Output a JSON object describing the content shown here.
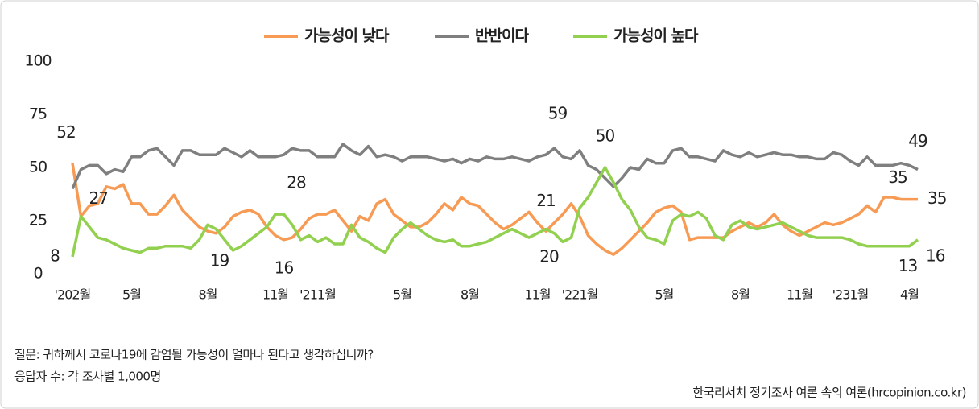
{
  "chart_data": {
    "type": "line",
    "categories": [
      "'202월",
      null,
      null,
      null,
      null,
      null,
      null,
      "5월",
      null,
      null,
      null,
      null,
      null,
      null,
      null,
      null,
      "8월",
      null,
      null,
      null,
      null,
      null,
      null,
      null,
      "11월",
      null,
      null,
      null,
      null,
      "'211월",
      null,
      null,
      null,
      null,
      null,
      null,
      null,
      null,
      null,
      "5월",
      null,
      null,
      null,
      null,
      null,
      null,
      null,
      "8월",
      null,
      null,
      null,
      null,
      null,
      null,
      null,
      "11월",
      null,
      null,
      null,
      null,
      "'221월",
      null,
      null,
      null,
      null,
      null,
      null,
      null,
      null,
      null,
      "5월",
      null,
      null,
      null,
      null,
      null,
      null,
      null,
      null,
      "8월",
      null,
      null,
      null,
      null,
      null,
      null,
      "11월",
      null,
      null,
      null,
      null,
      null,
      "'231월",
      null,
      null,
      null,
      null,
      null,
      null,
      "4월",
      null
    ],
    "series": [
      {
        "name": "가능성이 낮다",
        "color": "#f79b54",
        "label_color": "#e36c0a",
        "values": [
          52,
          27,
          32,
          33,
          41,
          40,
          42,
          33,
          33,
          28,
          28,
          32,
          37,
          30,
          26,
          22,
          20,
          19,
          22,
          27,
          29,
          30,
          28,
          22,
          18,
          16,
          17,
          21,
          26,
          28,
          28,
          30,
          25,
          20,
          27,
          25,
          33,
          35,
          28,
          25,
          22,
          22,
          24,
          28,
          33,
          30,
          36,
          33,
          32,
          28,
          24,
          21,
          23,
          26,
          29,
          24,
          20,
          24,
          28,
          33,
          27,
          18,
          14,
          11,
          9,
          12,
          16,
          20,
          24,
          29,
          31,
          32,
          29,
          16,
          17,
          17,
          17,
          17,
          20,
          22,
          24,
          22,
          24,
          28,
          23,
          20,
          18,
          20,
          22,
          24,
          23,
          24,
          26,
          28,
          32,
          29,
          36,
          36,
          35,
          35,
          35
        ],
        "value_labels": [
          "52",
          null,
          null,
          null,
          null,
          null,
          null,
          null,
          null,
          null,
          null,
          null,
          null,
          null,
          null,
          null,
          null,
          "19",
          null,
          null,
          null,
          null,
          null,
          null,
          null,
          "16",
          null,
          null,
          null,
          null,
          null,
          null,
          null,
          null,
          null,
          null,
          null,
          null,
          null,
          null,
          null,
          null,
          null,
          null,
          null,
          null,
          null,
          null,
          null,
          null,
          null,
          null,
          null,
          null,
          null,
          null,
          "20",
          null,
          null,
          null,
          null,
          null,
          null,
          null,
          null,
          null,
          null,
          null,
          null,
          null,
          null,
          null,
          null,
          null,
          null,
          null,
          null,
          null,
          null,
          null,
          null,
          null,
          null,
          null,
          null,
          null,
          null,
          null,
          null,
          null,
          null,
          null,
          null,
          null,
          null,
          null,
          null,
          null,
          "35",
          null,
          "35"
        ]
      },
      {
        "name": "반반이다",
        "color": "#7f7f7f",
        "label_color": "#222222",
        "values": [
          40,
          49,
          51,
          51,
          47,
          49,
          48,
          55,
          55,
          58,
          59,
          55,
          51,
          58,
          58,
          56,
          56,
          56,
          59,
          57,
          55,
          58,
          55,
          55,
          55,
          56,
          59,
          58,
          58,
          55,
          55,
          55,
          61,
          58,
          56,
          60,
          55,
          56,
          55,
          53,
          55,
          55,
          55,
          54,
          53,
          54,
          52,
          54,
          53,
          55,
          54,
          54,
          55,
          54,
          53,
          55,
          56,
          59,
          55,
          54,
          58,
          51,
          49,
          45,
          41,
          45,
          50,
          49,
          54,
          52,
          52,
          58,
          59,
          55,
          55,
          54,
          53,
          58,
          56,
          55,
          57,
          55,
          56,
          57,
          56,
          56,
          55,
          55,
          54,
          54,
          57,
          56,
          53,
          51,
          55,
          51,
          51,
          51,
          52,
          51,
          49
        ],
        "value_labels": [
          null,
          null,
          null,
          null,
          null,
          null,
          null,
          null,
          null,
          null,
          null,
          null,
          null,
          null,
          null,
          null,
          null,
          null,
          null,
          null,
          null,
          null,
          null,
          null,
          null,
          null,
          null,
          null,
          null,
          null,
          null,
          null,
          null,
          null,
          null,
          null,
          null,
          null,
          null,
          null,
          null,
          null,
          null,
          null,
          null,
          null,
          null,
          null,
          null,
          null,
          null,
          null,
          null,
          null,
          null,
          null,
          null,
          "59",
          null,
          null,
          null,
          null,
          null,
          null,
          null,
          null,
          null,
          null,
          null,
          null,
          null,
          null,
          null,
          null,
          null,
          null,
          null,
          null,
          null,
          null,
          null,
          null,
          null,
          null,
          null,
          null,
          null,
          null,
          null,
          null,
          null,
          null,
          null,
          null,
          null,
          null,
          null,
          null,
          null,
          null,
          "49"
        ]
      },
      {
        "name": "가능성이 높다",
        "color": "#92d050",
        "label_color": "#4f6228",
        "values": [
          8,
          27,
          22,
          17,
          16,
          14,
          12,
          11,
          10,
          12,
          12,
          13,
          13,
          13,
          12,
          16,
          23,
          21,
          16,
          11,
          13,
          16,
          19,
          22,
          28,
          28,
          23,
          16,
          18,
          15,
          17,
          14,
          14,
          23,
          17,
          15,
          12,
          10,
          17,
          21,
          24,
          21,
          18,
          16,
          15,
          16,
          13,
          13,
          14,
          15,
          17,
          19,
          21,
          19,
          17,
          19,
          21,
          19,
          15,
          17,
          31,
          36,
          43,
          50,
          43,
          35,
          30,
          22,
          17,
          16,
          14,
          25,
          28,
          27,
          29,
          26,
          18,
          16,
          23,
          25,
          22,
          21,
          22,
          23,
          24,
          22,
          20,
          18,
          17,
          17,
          17,
          17,
          16,
          14,
          13,
          13,
          13,
          13,
          13,
          13,
          16
        ],
        "value_labels": [
          "8",
          "27",
          null,
          null,
          null,
          null,
          null,
          null,
          null,
          null,
          null,
          null,
          null,
          null,
          null,
          null,
          null,
          null,
          null,
          null,
          null,
          null,
          null,
          null,
          "28",
          null,
          null,
          null,
          null,
          null,
          null,
          null,
          null,
          null,
          null,
          null,
          null,
          null,
          null,
          null,
          null,
          null,
          null,
          null,
          null,
          null,
          null,
          null,
          null,
          null,
          null,
          null,
          null,
          null,
          null,
          null,
          "21",
          null,
          null,
          null,
          null,
          null,
          null,
          "50",
          null,
          null,
          null,
          null,
          null,
          null,
          null,
          null,
          null,
          null,
          null,
          null,
          null,
          null,
          null,
          null,
          null,
          null,
          null,
          null,
          null,
          null,
          null,
          null,
          null,
          null,
          null,
          null,
          null,
          null,
          null,
          null,
          null,
          null,
          null,
          "13",
          "16"
        ]
      }
    ],
    "ylim": [
      0,
      100
    ],
    "yticks": [
      0,
      25,
      50,
      75,
      100
    ],
    "grid": false,
    "legend": "top",
    "question": "질문: 귀하께서 코로나19에 감염될 가능성이 얼마나 된다고 생각하십니까?",
    "sample": "응답자 수: 각 조사별 1,000명",
    "source": "한국리서치 정기조사 여론 속의 여론(hrcopinion.co.kr)"
  }
}
